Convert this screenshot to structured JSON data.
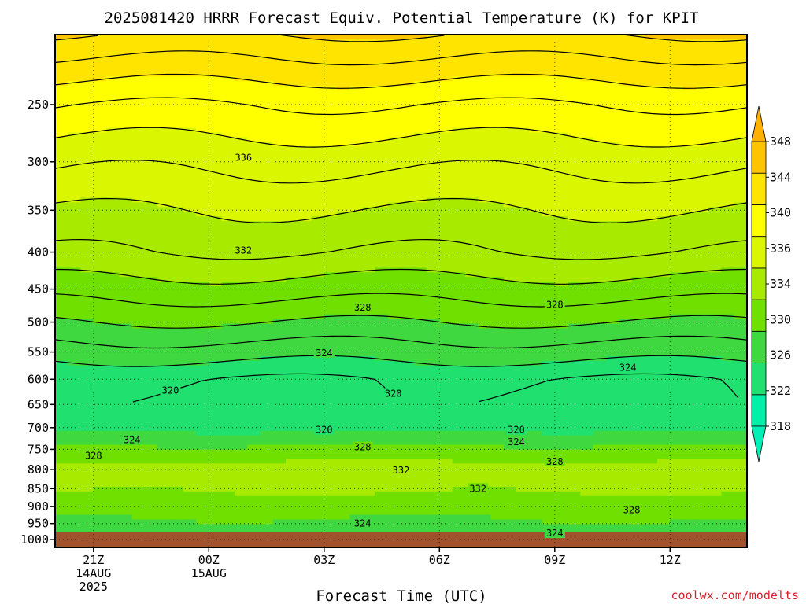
{
  "chart_data": {
    "type": "heatmap",
    "title": "2025081420 HRRR Forecast Equiv. Potential Temperature (K) for KPIT",
    "xlabel": "Forecast Time (UTC)",
    "ylabel": "",
    "x_ticks": [
      {
        "hour": 1,
        "lines": [
          "21Z",
          "14AUG",
          "2025"
        ]
      },
      {
        "hour": 4,
        "lines": [
          "00Z",
          "15AUG"
        ]
      },
      {
        "hour": 7,
        "lines": [
          "03Z"
        ]
      },
      {
        "hour": 10,
        "lines": [
          "06Z"
        ]
      },
      {
        "hour": 13,
        "lines": [
          "09Z"
        ]
      },
      {
        "hour": 16,
        "lines": [
          "12Z"
        ]
      }
    ],
    "xlim": [
      0,
      18
    ],
    "y_scale": "log",
    "ylim": [
      1025,
      200
    ],
    "y_ticks": [
      250,
      300,
      350,
      400,
      450,
      500,
      550,
      600,
      650,
      700,
      750,
      800,
      850,
      900,
      950,
      1000
    ],
    "ground_level_hPa": 975,
    "ground_color": "#a0522d",
    "colorbar": {
      "levels": [
        318,
        322,
        326,
        330,
        334,
        338,
        342,
        346
      ],
      "tick_labels": [
        "318",
        "322",
        "326",
        "330",
        "334",
        "336",
        "340",
        "344",
        "348"
      ],
      "colors": [
        "#00f0a8",
        "#20e070",
        "#40d840",
        "#70e000",
        "#a8ea00",
        "#daf600",
        "#ffff00",
        "#ffe400",
        "#ffc400"
      ]
    },
    "profile": {
      "pressure_hPa": [
        975,
        950,
        900,
        850,
        800,
        750,
        700,
        650,
        600,
        550,
        500,
        450,
        400,
        350,
        300,
        250,
        200
      ],
      "theta_e_K": [
        324.5,
        325.5,
        328,
        330.5,
        331.5,
        327,
        321,
        319.5,
        320,
        323,
        326,
        329,
        332,
        334,
        336.5,
        340,
        346
      ]
    },
    "contour_levels": [
      318,
      320,
      322,
      324,
      326,
      328,
      330,
      332,
      334,
      336,
      338,
      340,
      342,
      344,
      346
    ],
    "contour_labels": [
      {
        "text": "336",
        "hour": 4.9,
        "p": 296
      },
      {
        "text": "332",
        "hour": 4.9,
        "p": 398
      },
      {
        "text": "328",
        "hour": 8.0,
        "p": 477
      },
      {
        "text": "328",
        "hour": 13.0,
        "p": 473
      },
      {
        "text": "324",
        "hour": 7.0,
        "p": 552
      },
      {
        "text": "324",
        "hour": 14.9,
        "p": 578
      },
      {
        "text": "320",
        "hour": 3.0,
        "p": 622
      },
      {
        "text": "320",
        "hour": 8.8,
        "p": 628
      },
      {
        "text": "320",
        "hour": 7.0,
        "p": 705
      },
      {
        "text": "320",
        "hour": 12.0,
        "p": 705
      },
      {
        "text": "324",
        "hour": 2.0,
        "p": 728
      },
      {
        "text": "324",
        "hour": 12.0,
        "p": 733
      },
      {
        "text": "328",
        "hour": 1.0,
        "p": 765
      },
      {
        "text": "328",
        "hour": 8.0,
        "p": 745
      },
      {
        "text": "328",
        "hour": 13.0,
        "p": 780
      },
      {
        "text": "332",
        "hour": 9.0,
        "p": 802
      },
      {
        "text": "332",
        "hour": 11.0,
        "p": 850
      },
      {
        "text": "328",
        "hour": 15.0,
        "p": 910
      },
      {
        "text": "324",
        "hour": 8.0,
        "p": 950
      },
      {
        "text": "324",
        "hour": 13.0,
        "p": 980
      }
    ]
  },
  "credit": "coolwx.com/modelts"
}
